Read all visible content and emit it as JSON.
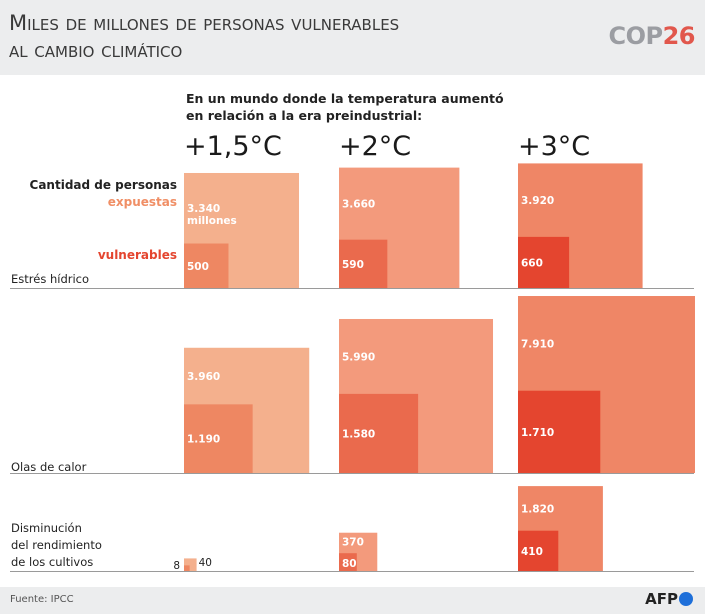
{
  "header": {
    "title_line1": "Miles de millones de personas vulnerables",
    "title_line2": "al cambio climático",
    "logo_cop": "COP",
    "logo_num": "26"
  },
  "footer": {
    "source": "Fuente: IPCC",
    "agency": "AFP"
  },
  "colors": {
    "exposed": [
      "#f4b08d",
      "#f39a7c",
      "#ef8666"
    ],
    "vulnerable": [
      "#ee8762",
      "#ea6a4d",
      "#e4452f"
    ],
    "baseline": "#9a9a9a",
    "text_dark": "#222222",
    "exposed_label": "#f08f66",
    "vulnerable_label": "#e4452f"
  },
  "chart_data": {
    "type": "proportional-squares",
    "subtitle_line1": "En un mundo donde la temperatura aumentó",
    "subtitle_line2": "en relación a la era preindustrial:",
    "scenarios": [
      "+1,5°C",
      "+2°C",
      "+3°C"
    ],
    "legend": {
      "heading": "Cantidad de personas",
      "exposed": "expuestas",
      "vulnerable": "vulnerables"
    },
    "unit_label": "millones",
    "series_unit": "millones de personas",
    "rows": [
      {
        "name": "Estrés hídrico",
        "exposed": [
          3340,
          3660,
          3920
        ],
        "exposed_labels": [
          "3.340",
          "3.660",
          "3.920"
        ],
        "vulnerable": [
          500,
          590,
          660
        ],
        "vulnerable_labels": [
          "500",
          "590",
          "660"
        ]
      },
      {
        "name": "Olas de calor",
        "exposed": [
          3960,
          5990,
          7910
        ],
        "exposed_labels": [
          "3.960",
          "5.990",
          "7.910"
        ],
        "vulnerable": [
          1190,
          1580,
          1710
        ],
        "vulnerable_labels": [
          "1.190",
          "1.580",
          "1.710"
        ]
      },
      {
        "name_lines": [
          "Disminución",
          "del rendimiento",
          "de los cultivos"
        ],
        "exposed": [
          40,
          370,
          1820
        ],
        "exposed_labels": [
          "40",
          "370",
          "1.820"
        ],
        "vulnerable": [
          8,
          80,
          410
        ],
        "vulnerable_labels": [
          "8",
          "80",
          "410"
        ]
      }
    ]
  }
}
